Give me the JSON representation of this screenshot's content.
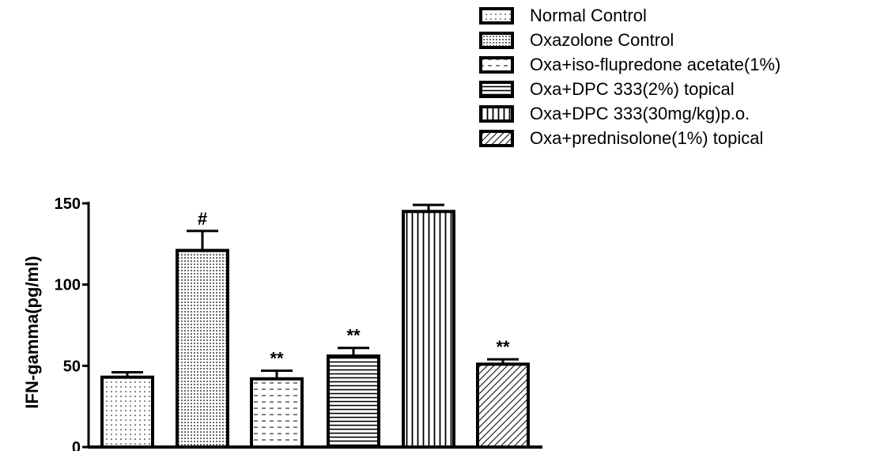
{
  "chart_data": {
    "type": "bar",
    "title": "",
    "xlabel": "",
    "ylabel": "IFN-gamma(pg/ml)",
    "ylim": [
      0,
      150
    ],
    "yticks": [
      "0",
      "50",
      "100",
      "150"
    ],
    "grid": false,
    "legend_position": "top-right",
    "categories": [
      "Normal Control",
      "Oxazolone Control",
      "Oxa+iso-flupredone acetate(1%)",
      "Oxa+DPC 333(2%) topical",
      "Oxa+DPC 333(30mg/kg)p.o.",
      "Oxa+prednisolone(1%) topical"
    ],
    "values": [
      43,
      121,
      42,
      56,
      145,
      51
    ],
    "errors": [
      3,
      12,
      5,
      5,
      4,
      3
    ],
    "annotations": [
      "",
      "#",
      "**",
      "**",
      "",
      "**"
    ],
    "patterns": [
      "dots",
      "dense-dots",
      "dashes",
      "horizontal",
      "vertical",
      "diagonal"
    ]
  }
}
